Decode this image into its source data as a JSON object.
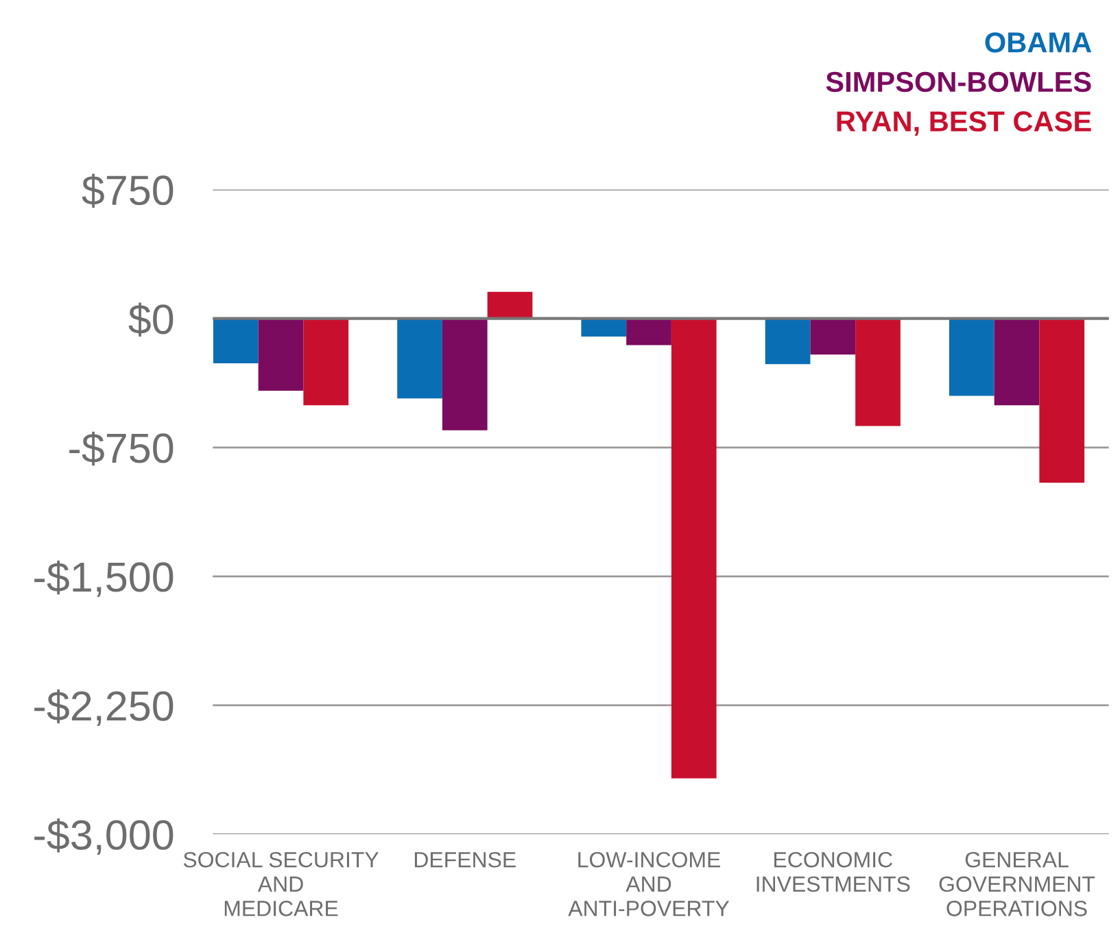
{
  "chart_data": {
    "type": "bar",
    "categories": [
      "SOCIAL SECURITY\nAND\nMEDICARE",
      "DEFENSE",
      "LOW-INCOME\nAND\nANTI-POVERTY",
      "ECONOMIC\nINVESTMENTS",
      "GENERAL\nGOVERNMENT\nOPERATIONS"
    ],
    "series": [
      {
        "name": "OBAMA",
        "color": "#0a6eb4",
        "values": [
          -260,
          -465,
          -105,
          -265,
          -450
        ]
      },
      {
        "name": "SIMPSON-BOWLES",
        "color": "#7a0b5e",
        "values": [
          -420,
          -650,
          -155,
          -210,
          -505
        ]
      },
      {
        "name": "RYAN, BEST CASE",
        "color": "#c8102e",
        "values": [
          -505,
          155,
          -2675,
          -625,
          -955
        ]
      }
    ],
    "ylim": [
      -3000,
      750
    ],
    "yticks": [
      {
        "value": 750,
        "label": "$750"
      },
      {
        "value": 0,
        "label": "$0"
      },
      {
        "value": -750,
        "label": "-$750"
      },
      {
        "value": -1500,
        "label": "-$1,500"
      },
      {
        "value": -2250,
        "label": "-$2,250"
      },
      {
        "value": -3000,
        "label": "-$3,000"
      }
    ],
    "grid": "y",
    "legend": "top right"
  }
}
